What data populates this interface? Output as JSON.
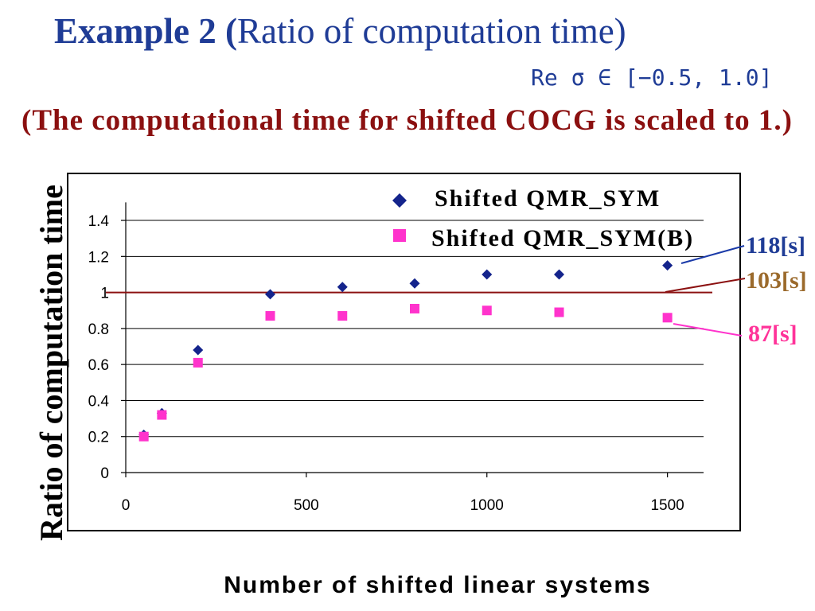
{
  "slide": {
    "title_bold": "Example 2 (",
    "title_rest": "Ratio of computation time)",
    "range_note": "Re σ ∈ [−0.5, 1.0]",
    "scaling_note": "(The computational time for shifted COCG is scaled to 1.)",
    "colors": {
      "title": "#1f3c96",
      "range_note": "#1f3c96",
      "scaling_note": "#8b1010"
    }
  },
  "chart_data": {
    "type": "scatter",
    "xlabel": "Number of shifted linear systems",
    "ylabel": "Ratio of computation time",
    "xlim": [
      0,
      1600
    ],
    "ylim": [
      0,
      1.5
    ],
    "xticks": [
      0,
      500,
      1000,
      1500
    ],
    "xtick_labels": [
      "0",
      "500",
      "1000",
      "1500"
    ],
    "yticks": [
      0,
      0.2,
      0.4,
      0.6,
      0.8,
      1,
      1.2,
      1.4
    ],
    "ytick_labels": [
      "0",
      "0.2",
      "0.4",
      "0.6",
      "0.8",
      "1",
      "1.2",
      "1.4"
    ],
    "grid": "horizontal",
    "legend": "top-right",
    "series": [
      {
        "name": "Shifted QMR_SYM",
        "marker": "diamond",
        "color": "#14248c",
        "x": [
          50,
          100,
          200,
          400,
          600,
          800,
          1000,
          1200,
          1500
        ],
        "y": [
          0.21,
          0.33,
          0.68,
          0.99,
          1.03,
          1.05,
          1.1,
          1.1,
          1.15
        ]
      },
      {
        "name": "Shifted QMR_SYM(B)",
        "marker": "square",
        "color": "#ff33cc",
        "x": [
          50,
          100,
          200,
          400,
          600,
          800,
          1000,
          1200,
          1500
        ],
        "y": [
          0.2,
          0.32,
          0.61,
          0.87,
          0.87,
          0.91,
          0.9,
          0.89,
          0.86
        ]
      }
    ],
    "reference_line": {
      "y": 1,
      "color": "#8b1010"
    },
    "annotations": [
      {
        "text": "118[s]",
        "color": "#1f3c96",
        "line_color": "#1a3aa8"
      },
      {
        "text": "103[s]",
        "color": "#9b6a2c",
        "line_color": "#8b1010"
      },
      {
        "text": "87[s]",
        "color": "#ff3399",
        "line_color": "#ff33cc"
      }
    ]
  }
}
